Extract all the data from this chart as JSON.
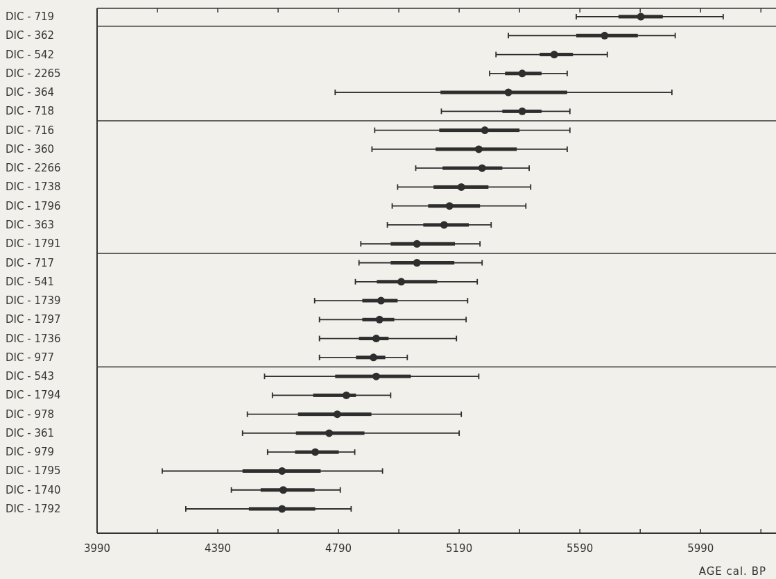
{
  "chart_data": [
    {
      "type": "box",
      "orientation": "horizontal",
      "color": "#2e2e2e",
      "tick_labels": "y",
      "categories": [
        "DIC - 719"
      ],
      "boxes": [
        {
          "low": 5578,
          "q1": 5718,
          "median": 5792,
          "q3": 5865,
          "high": 6065
        }
      ],
      "xlim": [
        3990,
        6240
      ],
      "xticks": [
        3990,
        {
          "value": 4190,
          "label": null
        },
        4390,
        {
          "value": 4590,
          "label": null
        },
        4790,
        {
          "value": 4990,
          "label": null
        },
        5190,
        {
          "value": 5390,
          "label": null
        },
        5590,
        {
          "value": 5790,
          "label": null
        },
        5990,
        {
          "value": 6190,
          "label": null
        }
      ]
    },
    {
      "type": "box",
      "orientation": "horizontal",
      "color": "#2e2e2e",
      "tick_labels": "y",
      "categories": [
        "DIC - 362",
        "DIC - 542",
        "DIC - 2265",
        "DIC - 364",
        "DIC - 718"
      ],
      "boxes": [
        {
          "low": 5353,
          "q1": 5578,
          "median": 5672,
          "q3": 5782,
          "high": 5906
        },
        {
          "low": 5312,
          "q1": 5457,
          "median": 5505,
          "q3": 5567,
          "high": 5681
        },
        {
          "low": 5291,
          "q1": 5342,
          "median": 5399,
          "q3": 5463,
          "high": 5548
        },
        {
          "low": 4779,
          "q1": 5128,
          "median": 5353,
          "q3": 5548,
          "high": 5895
        },
        {
          "low": 5131,
          "q1": 5333,
          "median": 5399,
          "q3": 5463,
          "high": 5557
        }
      ],
      "xlim": [
        3990,
        6240
      ]
    },
    {
      "type": "box",
      "orientation": "horizontal",
      "color": "#2e2e2e",
      "tick_labels": "y",
      "categories": [
        "DIC - 716",
        "DIC - 360",
        "DIC - 2266",
        "DIC - 1738",
        "DIC - 1796",
        "DIC - 363",
        "DIC - 1791"
      ],
      "boxes": [
        {
          "low": 4910,
          "q1": 5124,
          "median": 5275,
          "q3": 5390,
          "high": 5557
        },
        {
          "low": 4901,
          "q1": 5112,
          "median": 5255,
          "q3": 5381,
          "high": 5548
        },
        {
          "low": 5046,
          "q1": 5135,
          "median": 5266,
          "q3": 5333,
          "high": 5422
        },
        {
          "low": 4986,
          "q1": 5105,
          "median": 5197,
          "q3": 5287,
          "high": 5427
        },
        {
          "low": 4968,
          "q1": 5087,
          "median": 5158,
          "q3": 5259,
          "high": 5411
        },
        {
          "low": 4952,
          "q1": 5071,
          "median": 5140,
          "q3": 5222,
          "high": 5296
        },
        {
          "low": 4864,
          "q1": 4963,
          "median": 5050,
          "q3": 5176,
          "high": 5259
        }
      ],
      "xlim": [
        3990,
        6240
      ]
    },
    {
      "type": "box",
      "orientation": "horizontal",
      "color": "#2e2e2e",
      "tick_labels": "y",
      "categories": [
        "DIC - 717",
        "DIC - 541",
        "DIC - 1739",
        "DIC - 1797",
        "DIC - 1736",
        "DIC - 977"
      ],
      "boxes": [
        {
          "low": 4858,
          "q1": 4963,
          "median": 5050,
          "q3": 5174,
          "high": 5266
        },
        {
          "low": 4846,
          "q1": 4917,
          "median": 4998,
          "q3": 5117,
          "high": 5250
        },
        {
          "low": 4711,
          "q1": 4869,
          "median": 4931,
          "q3": 4986,
          "high": 5218
        },
        {
          "low": 4727,
          "q1": 4869,
          "median": 4926,
          "q3": 4975,
          "high": 5213
        },
        {
          "low": 4727,
          "q1": 4858,
          "median": 4915,
          "q3": 4956,
          "high": 5181
        },
        {
          "low": 4727,
          "q1": 4848,
          "median": 4906,
          "q3": 4945,
          "high": 5018
        }
      ],
      "xlim": [
        3990,
        6240
      ]
    },
    {
      "type": "box",
      "orientation": "horizontal",
      "color": "#2e2e2e",
      "xlabel": "AGE cal. BP",
      "categories": [
        "DIC - 543",
        "DIC - 1794",
        "DIC - 978",
        "DIC - 361",
        "DIC - 979",
        "DIC - 1795",
        "DIC - 1740",
        "DIC - 1792"
      ],
      "boxes": [
        {
          "low": 4545,
          "q1": 4779,
          "median": 4915,
          "q3": 5030,
          "high": 5255
        },
        {
          "low": 4571,
          "q1": 4706,
          "median": 4816,
          "q3": 4848,
          "high": 4963
        },
        {
          "low": 4488,
          "q1": 4656,
          "median": 4786,
          "q3": 4899,
          "high": 5197
        },
        {
          "low": 4472,
          "q1": 4649,
          "median": 4759,
          "q3": 4876,
          "high": 5190
        },
        {
          "low": 4555,
          "q1": 4646,
          "median": 4713,
          "q3": 4791,
          "high": 4844
        },
        {
          "low": 4206,
          "q1": 4472,
          "median": 4603,
          "q3": 4731,
          "high": 4936
        },
        {
          "low": 4435,
          "q1": 4532,
          "median": 4607,
          "q3": 4711,
          "high": 4796
        },
        {
          "low": 4284,
          "q1": 4493,
          "median": 4603,
          "q3": 4713,
          "high": 4832
        }
      ],
      "xlim": [
        3990,
        6240
      ],
      "xticks": [
        3990,
        {
          "value": 4190,
          "label": null
        },
        4390,
        {
          "value": 4590,
          "label": null
        },
        4790,
        {
          "value": 4990,
          "label": null
        },
        5190,
        {
          "value": 5390,
          "label": null
        },
        5590,
        {
          "value": 5790,
          "label": null
        },
        5990,
        {
          "value": 6190,
          "label": null
        }
      ]
    }
  ]
}
